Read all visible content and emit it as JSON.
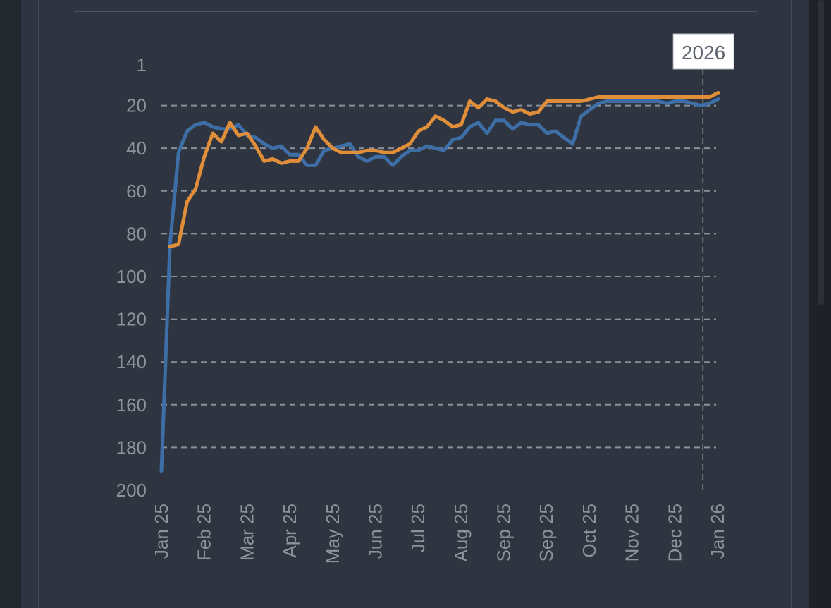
{
  "chart_data": {
    "type": "line",
    "title": "",
    "xlabel": "",
    "ylabel": "",
    "y_reversed": true,
    "ylim": [
      1,
      200
    ],
    "y_ticks": [
      "1",
      "20",
      "40",
      "60",
      "80",
      "100",
      "120",
      "140",
      "160",
      "180",
      "200"
    ],
    "x_ticks": [
      "Jan 25",
      "Feb 25",
      "Mar 25",
      "Apr 25",
      "May 25",
      "Jun 25",
      "Jul 25",
      "Aug 25",
      "Sep 25",
      "Sep 25",
      "Oct 25",
      "Nov 25",
      "Dec 25",
      "Jan 26"
    ],
    "grid": "horizontal dashed",
    "annotation": {
      "label": "2026",
      "x_week": 63.2
    },
    "x_unit": "week index (0 = first week of Jan 25)",
    "series": [
      {
        "color": "#3d6ea6",
        "x": [
          0,
          1,
          2,
          3,
          4,
          5,
          6,
          7,
          8,
          9,
          10,
          11,
          12,
          13,
          14,
          15,
          16,
          17,
          18,
          19,
          20,
          21,
          22,
          23,
          24,
          25,
          26,
          27,
          28,
          29,
          30,
          31,
          32,
          33,
          34,
          35,
          36,
          37,
          38,
          39,
          40,
          41,
          42,
          43,
          44,
          45,
          46,
          47,
          48,
          49,
          50,
          51,
          52,
          53,
          54,
          55,
          56,
          57,
          58,
          59,
          60,
          61,
          62,
          63,
          64,
          65
        ],
        "values": [
          191,
          85,
          42,
          32,
          29,
          28,
          30,
          31,
          31,
          29,
          34,
          35,
          38,
          40,
          39,
          43,
          43,
          48,
          48,
          41,
          40,
          39,
          38,
          44,
          46,
          44,
          44,
          48,
          44,
          41,
          41,
          39,
          40,
          41,
          36,
          35,
          30,
          28,
          33,
          27,
          27,
          31,
          28,
          29,
          29,
          33,
          32,
          35,
          38,
          25,
          22,
          19,
          18,
          18,
          18,
          18,
          18,
          18,
          18,
          19,
          18,
          18,
          19,
          20,
          19,
          17
        ]
      },
      {
        "color": "#e08e3a",
        "x": [
          1,
          2,
          3,
          4,
          5,
          6,
          7,
          8,
          9,
          10,
          11,
          12,
          13,
          14,
          15,
          16,
          17,
          18,
          19,
          20,
          21,
          22,
          23,
          24,
          25,
          26,
          27,
          28,
          29,
          30,
          31,
          32,
          33,
          34,
          35,
          36,
          37,
          38,
          39,
          40,
          41,
          42,
          43,
          44,
          45,
          46,
          47,
          48,
          49,
          50,
          51,
          52,
          53,
          54,
          55,
          56,
          57,
          58,
          59,
          60,
          61,
          62,
          63,
          64,
          65
        ],
        "values": [
          86,
          85,
          65,
          59,
          44,
          33,
          37,
          28,
          34,
          33,
          39,
          46,
          45,
          47,
          46,
          46,
          40,
          30,
          36,
          40,
          42,
          42,
          42,
          41,
          41,
          42,
          42,
          40,
          38,
          32,
          30,
          25,
          27,
          30,
          29,
          18,
          21,
          17,
          18,
          21,
          23,
          22,
          24,
          23,
          18,
          18,
          18,
          18,
          18,
          17,
          16,
          16,
          16,
          16,
          16,
          16,
          16,
          16,
          16,
          16,
          16,
          16,
          16,
          16,
          14
        ]
      }
    ]
  }
}
